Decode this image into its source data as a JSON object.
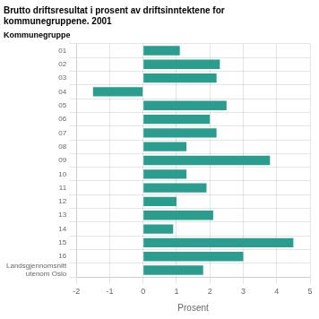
{
  "chart_data": {
    "type": "bar",
    "orientation": "horizontal",
    "title": "Brutto driftsresultat i prosent av driftsinntektene for\nkommunegruppene. 2001",
    "ylabel": "Kommunegruppe",
    "xlabel": "Prosent",
    "categories": [
      "01",
      "02",
      "03",
      "04",
      "05",
      "06",
      "07",
      "08",
      "09",
      "10",
      "11",
      "12",
      "13",
      "14",
      "15",
      "16",
      "Landsgjennomsnitt\nutenom Oslo"
    ],
    "values": [
      1.1,
      2.3,
      2.2,
      -1.5,
      2.5,
      2.0,
      2.2,
      1.3,
      3.8,
      1.3,
      1.9,
      1.0,
      2.1,
      0.9,
      4.5,
      3.0,
      1.8
    ],
    "color": "#2a9d8f",
    "xlim": [
      -2,
      5
    ],
    "xticks": [
      -2,
      -1,
      0,
      1,
      2,
      3,
      4,
      5
    ],
    "grid": true
  }
}
